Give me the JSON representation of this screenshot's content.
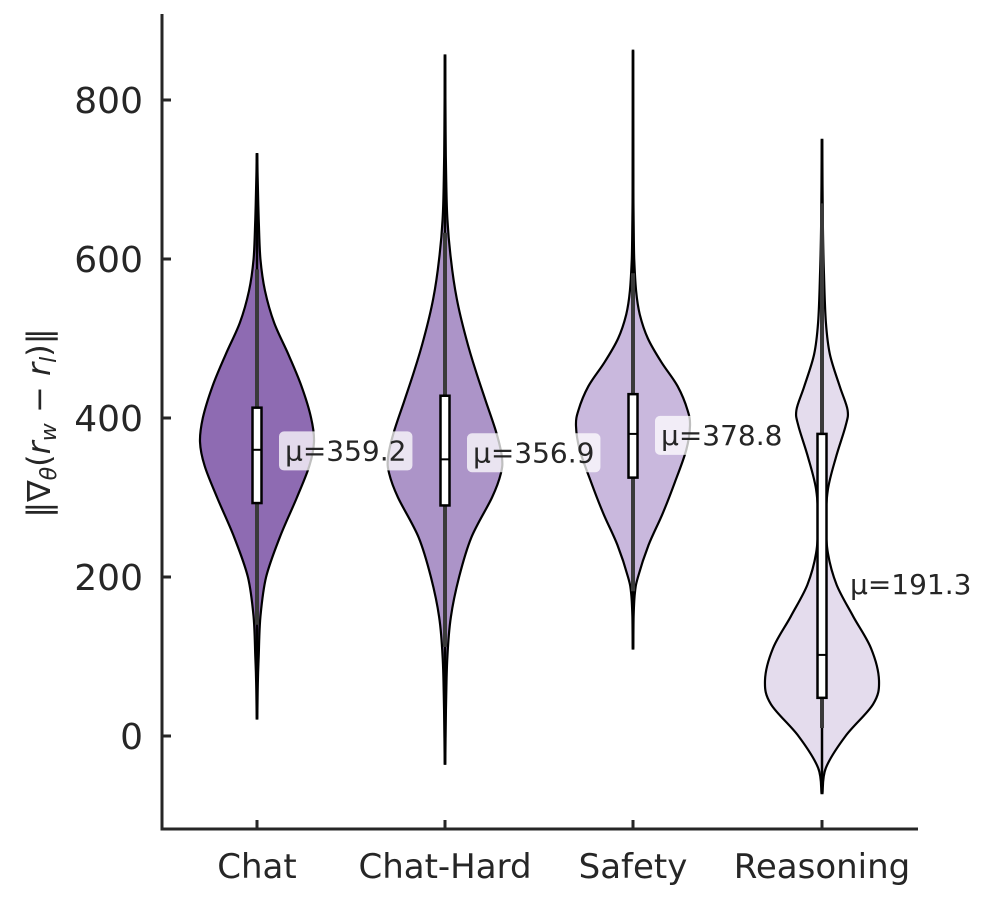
{
  "chart_data": {
    "type": "violin",
    "title": "",
    "xlabel": "",
    "ylabel": "‖∇θ(rw − rl)‖",
    "ylabel_parts": {
      "base": "‖∇",
      "sub1": "θ",
      "open": "(",
      "r1": "r",
      "sub2": "w",
      "minus": " − ",
      "r2": "r",
      "sub3": "l",
      "close": ")‖"
    },
    "ylim": [
      -115,
      915
    ],
    "yticks": [
      0,
      200,
      400,
      600,
      800
    ],
    "ytick_labels": [
      "0",
      "200",
      "400",
      "600",
      "800"
    ],
    "categories": [
      "Chat",
      "Chat-Hard",
      "Safety",
      "Reasoning"
    ],
    "colors": [
      "#8e6bb2",
      "#ac94c8",
      "#c9b8dd",
      "#e4dced"
    ],
    "series": [
      {
        "name": "Chat",
        "mean": 359.2,
        "mean_label": "μ=359.2",
        "median": 360,
        "q1": 293,
        "q3": 413,
        "whisker_low": 140,
        "whisker_high": 587,
        "extent": [
          22,
          732
        ],
        "density": [
          [
            22,
            0.005
          ],
          [
            70,
            0.015
          ],
          [
            100,
            0.03
          ],
          [
            150,
            0.06
          ],
          [
            200,
            0.16
          ],
          [
            250,
            0.4
          ],
          [
            300,
            0.7
          ],
          [
            340,
            0.92
          ],
          [
            370,
            1.0
          ],
          [
            400,
            0.95
          ],
          [
            440,
            0.78
          ],
          [
            480,
            0.55
          ],
          [
            520,
            0.3
          ],
          [
            560,
            0.14
          ],
          [
            600,
            0.06
          ],
          [
            650,
            0.03
          ],
          [
            700,
            0.012
          ],
          [
            732,
            0.005
          ]
        ]
      },
      {
        "name": "Chat-Hard",
        "mean": 356.9,
        "mean_label": "μ=356.9",
        "median": 348,
        "q1": 290,
        "q3": 428,
        "whisker_low": 112,
        "whisker_high": 633,
        "extent": [
          -35,
          856
        ],
        "density": [
          [
            -35,
            0.005
          ],
          [
            0,
            0.01
          ],
          [
            50,
            0.02
          ],
          [
            100,
            0.04
          ],
          [
            150,
            0.1
          ],
          [
            200,
            0.24
          ],
          [
            250,
            0.45
          ],
          [
            300,
            0.8
          ],
          [
            330,
            0.95
          ],
          [
            350,
            0.97
          ],
          [
            380,
            0.88
          ],
          [
            420,
            0.7
          ],
          [
            460,
            0.52
          ],
          [
            500,
            0.36
          ],
          [
            550,
            0.2
          ],
          [
            600,
            0.1
          ],
          [
            650,
            0.04
          ],
          [
            700,
            0.02
          ],
          [
            760,
            0.01
          ],
          [
            856,
            0.005
          ]
        ]
      },
      {
        "name": "Safety",
        "mean": 378.8,
        "mean_label": "μ=378.8",
        "median": 380,
        "q1": 325,
        "q3": 430,
        "whisker_low": 182,
        "whisker_high": 582,
        "extent": [
          110,
          862
        ],
        "density": [
          [
            110,
            0.005
          ],
          [
            150,
            0.01
          ],
          [
            180,
            0.03
          ],
          [
            200,
            0.08
          ],
          [
            240,
            0.25
          ],
          [
            280,
            0.48
          ],
          [
            320,
            0.68
          ],
          [
            360,
            0.86
          ],
          [
            390,
            0.92
          ],
          [
            410,
            0.88
          ],
          [
            440,
            0.72
          ],
          [
            470,
            0.46
          ],
          [
            500,
            0.24
          ],
          [
            530,
            0.11
          ],
          [
            560,
            0.05
          ],
          [
            600,
            0.02
          ],
          [
            650,
            0.01
          ],
          [
            700,
            0.006
          ],
          [
            862,
            0.003
          ]
        ]
      },
      {
        "name": "Reasoning",
        "mean": 191.3,
        "mean_label": "μ=191.3",
        "median": 102,
        "q1": 48,
        "q3": 380,
        "whisker_low": 10,
        "whisker_high": 670,
        "extent": [
          -72,
          750
        ],
        "density": [
          [
            -72,
            0.005
          ],
          [
            -40,
            0.04
          ],
          [
            0,
            0.24
          ],
          [
            40,
            0.52
          ],
          [
            70,
            0.58
          ],
          [
            110,
            0.5
          ],
          [
            150,
            0.32
          ],
          [
            190,
            0.15
          ],
          [
            230,
            0.06
          ],
          [
            270,
            0.04
          ],
          [
            310,
            0.06
          ],
          [
            350,
            0.14
          ],
          [
            390,
            0.24
          ],
          [
            410,
            0.26
          ],
          [
            440,
            0.18
          ],
          [
            480,
            0.08
          ],
          [
            520,
            0.04
          ],
          [
            580,
            0.02
          ],
          [
            650,
            0.008
          ],
          [
            750,
            0.003
          ]
        ]
      }
    ]
  }
}
